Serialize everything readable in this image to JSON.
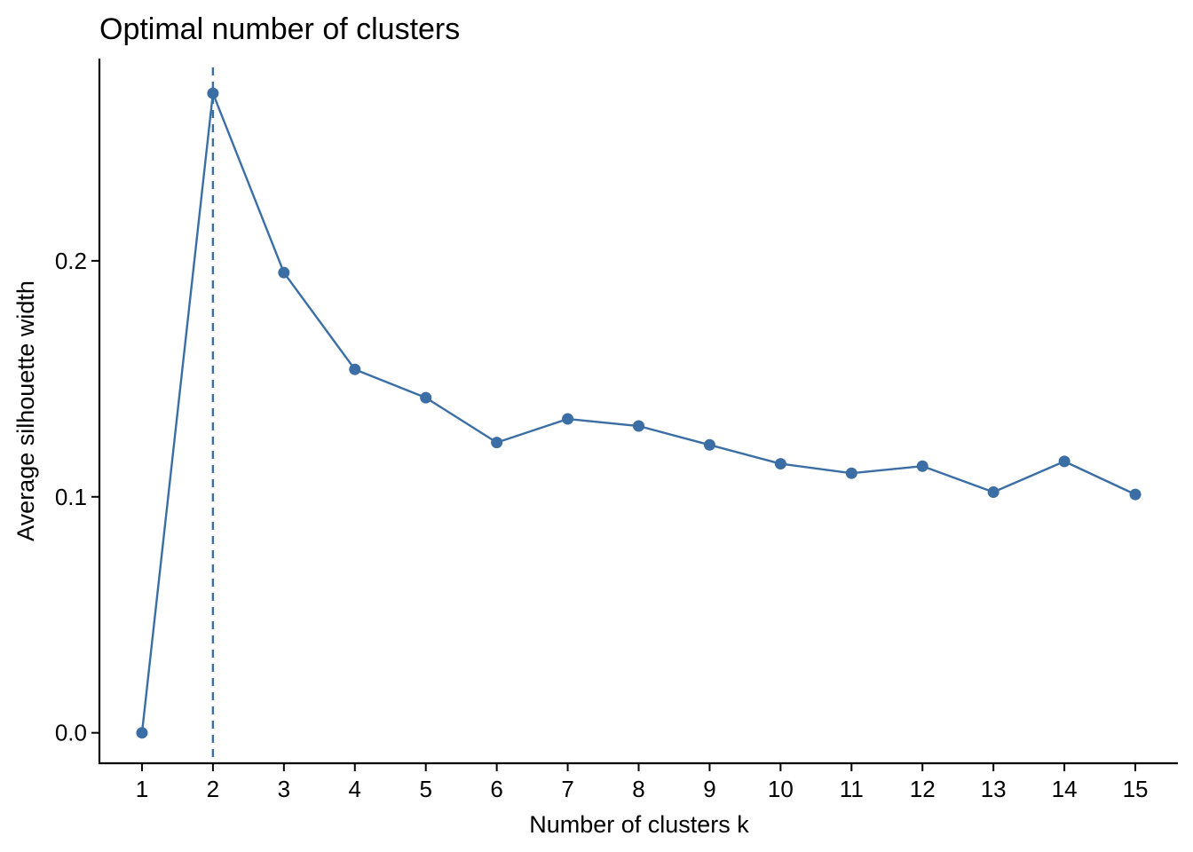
{
  "chart_data": {
    "type": "line",
    "title": "Optimal number of clusters",
    "xlabel": "Number of clusters k",
    "ylabel": "Average silhouette width",
    "x": [
      1,
      2,
      3,
      4,
      5,
      6,
      7,
      8,
      9,
      10,
      11,
      12,
      13,
      14,
      15
    ],
    "x_tick_labels": [
      "1",
      "2",
      "3",
      "4",
      "5",
      "6",
      "7",
      "8",
      "9",
      "10",
      "11",
      "12",
      "13",
      "14",
      "15"
    ],
    "y_ticks": [
      0.0,
      0.1,
      0.2
    ],
    "y_tick_labels": [
      "0.0",
      "0.1",
      "0.2"
    ],
    "series": [
      {
        "values": [
          0.0,
          0.271,
          0.195,
          0.154,
          0.142,
          0.123,
          0.133,
          0.13,
          0.122,
          0.114,
          0.11,
          0.113,
          0.102,
          0.115,
          0.101
        ]
      }
    ],
    "reference_line": {
      "axis": "x",
      "value": 2,
      "style": "dashed"
    },
    "xlim": [
      0.4,
      15.6
    ],
    "ylim": [
      -0.0129,
      0.2857
    ],
    "grid": false,
    "colors": {
      "series": "#3A6EA5",
      "axis": "#000000"
    }
  }
}
